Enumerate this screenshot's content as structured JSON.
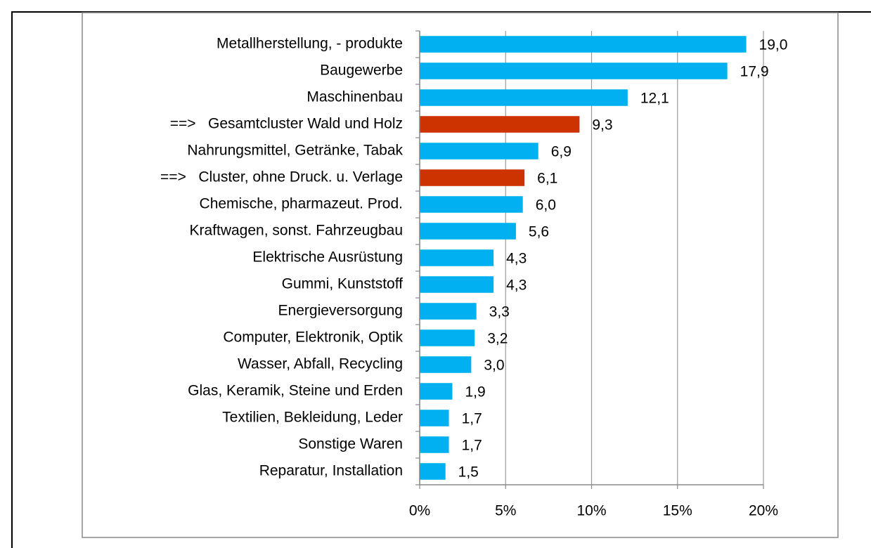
{
  "chart_data": {
    "type": "barh",
    "categories": [
      "Metallherstellung, - produkte",
      "Baugewerbe",
      "Maschinenbau",
      "==>   Gesamtcluster Wald und Holz",
      "Nahrungsmittel, Getränke, Tabak",
      "==>   Cluster, ohne Druck. u. Verlage",
      "Chemische, pharmazeut. Prod.",
      "Kraftwagen, sonst. Fahrzeugbau",
      "Elektrische Ausrüstung",
      "Gummi, Kunststoff",
      "Energieversorgung",
      "Computer, Elektronik, Optik",
      "Wasser, Abfall, Recycling",
      "Glas, Keramik, Steine und Erden",
      "Textilien, Bekleidung, Leder",
      "Sonstige Waren",
      "Reparatur, Installation"
    ],
    "values": [
      19.0,
      17.9,
      12.1,
      9.3,
      6.9,
      6.1,
      6.0,
      5.6,
      4.3,
      4.3,
      3.3,
      3.2,
      3.0,
      1.9,
      1.7,
      1.7,
      1.5
    ],
    "value_labels": [
      "19,0",
      "17,9",
      "12,1",
      "9,3",
      "6,9",
      "6,1",
      "6,0",
      "5,6",
      "4,3",
      "4,3",
      "3,3",
      "3,2",
      "3,0",
      "1,9",
      "1,7",
      "1,7",
      "1,5"
    ],
    "colors": [
      "#00b0f0",
      "#00b0f0",
      "#00b0f0",
      "#cc3300",
      "#00b0f0",
      "#cc3300",
      "#00b0f0",
      "#00b0f0",
      "#00b0f0",
      "#00b0f0",
      "#00b0f0",
      "#00b0f0",
      "#00b0f0",
      "#00b0f0",
      "#00b0f0",
      "#00b0f0",
      "#00b0f0"
    ],
    "xlim": [
      0,
      20
    ],
    "xticks": [
      {
        "value": 0,
        "label": "0%"
      },
      {
        "value": 5,
        "label": "5%"
      },
      {
        "value": 10,
        "label": "10%"
      },
      {
        "value": 15,
        "label": "15%"
      },
      {
        "value": 20,
        "label": "20%"
      }
    ],
    "grid": true
  }
}
